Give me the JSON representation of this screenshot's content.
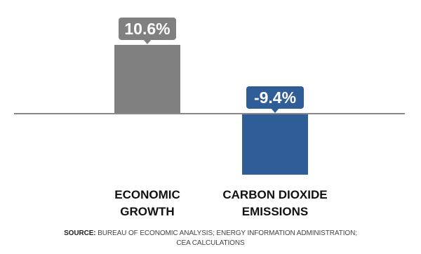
{
  "chart_data": {
    "type": "bar",
    "categories": [
      "ECONOMIC GROWTH",
      "CARBON DIOXIDE EMISSIONS"
    ],
    "category_lines": [
      [
        "ECONOMIC",
        "GROWTH"
      ],
      [
        "CARBON DIOXIDE",
        "EMISSIONS"
      ]
    ],
    "values": [
      10.6,
      -9.4
    ],
    "data_labels": [
      "10.6%",
      "-9.4%"
    ],
    "colors": [
      "#808080",
      "#2e5d97"
    ],
    "baseline_color": "#888888",
    "label_text_color": "#ffffff",
    "ylim": [
      -12,
      14
    ],
    "grid": false,
    "legend": "none"
  },
  "source": {
    "label": "SOURCE:",
    "text": "BUREAU OF ECONOMIC ANALYSIS; ENERGY INFORMATION ADMINISTRATION;",
    "text_line2": "CEA CALCULATIONS"
  }
}
